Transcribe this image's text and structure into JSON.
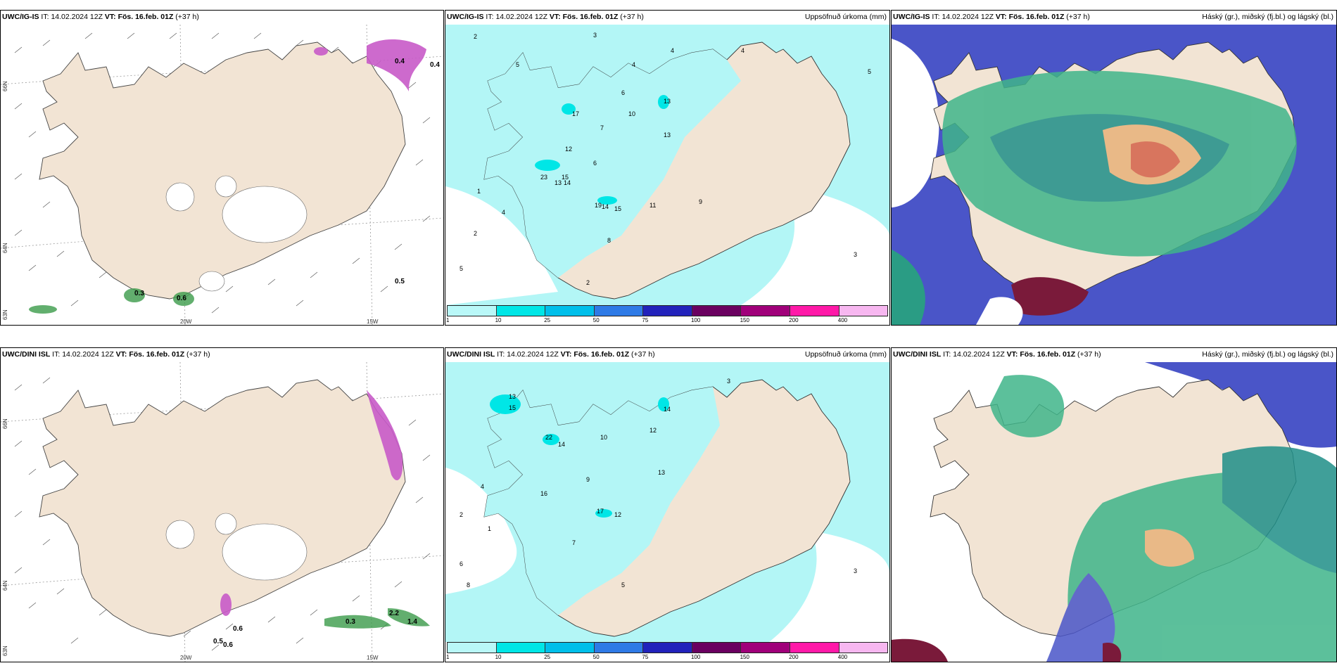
{
  "panels": [
    {
      "id": "r1c1",
      "model": "UWC/IG-IS",
      "it_label": "IT:",
      "it_value": "14.02.2024 12Z",
      "vt_label": "VT:",
      "vt_value": "Fös. 16.feb. 01Z",
      "lead": "(+37 h)",
      "right_title": "",
      "grid_labels": {
        "lat_66": "66N",
        "lat_64": "64N",
        "lat_63": "63N",
        "lon_20": "20W",
        "lon_15": "15W"
      },
      "values": [
        "0.5",
        "0.3",
        "0.6",
        "0.4",
        "0.4"
      ]
    },
    {
      "id": "r1c2",
      "model": "UWC/IG-IS",
      "it_label": "IT:",
      "it_value": "14.02.2024 12Z",
      "vt_label": "VT:",
      "vt_value": "Fös. 16.feb. 01Z",
      "lead": "(+37 h)",
      "right_title": "Uppsöfnuð úrkoma (mm)",
      "legend_ticks": [
        "1",
        "10",
        "25",
        "50",
        "75",
        "100",
        "150",
        "200",
        "400"
      ],
      "values": [
        "3",
        "4",
        "4",
        "5",
        "6",
        "2",
        "4",
        "10",
        "13",
        "17",
        "15",
        "12",
        "13",
        "23",
        "13",
        "14",
        "19",
        "15",
        "14",
        "11",
        "9",
        "7",
        "6",
        "8",
        "5",
        "2",
        "1",
        "4",
        "2",
        "5",
        "3"
      ]
    },
    {
      "id": "r1c3",
      "model": "UWC/IG-IS",
      "it_label": "IT:",
      "it_value": "14.02.2024 12Z",
      "vt_label": "VT:",
      "vt_value": "Fös. 16.feb. 01Z",
      "lead": "(+37 h)",
      "right_title": "Háský (gr.), miðský (fj.bl.) og lágský (bl.)"
    },
    {
      "id": "r2c1",
      "model": "UWC/DINI ISL",
      "it_label": "IT:",
      "it_value": "14.02.2024 12Z",
      "vt_label": "VT:",
      "vt_value": "Fös. 16.feb. 01Z",
      "lead": "(+37 h)",
      "right_title": "",
      "grid_labels": {
        "lat_66": "66N",
        "lat_64": "64N",
        "lat_63": "63N",
        "lon_20": "20W",
        "lon_15": "15W"
      },
      "values": [
        "0.6",
        "0.5",
        "0.6",
        "0.3",
        "1.4",
        "2.2"
      ]
    },
    {
      "id": "r2c2",
      "model": "UWC/DINI ISL",
      "it_label": "IT:",
      "it_value": "14.02.2024 12Z",
      "vt_label": "VT:",
      "vt_value": "Fös. 16.feb. 01Z",
      "lead": "(+37 h)",
      "right_title": "Uppsöfnuð úrkoma (mm)",
      "legend_ticks": [
        "1",
        "10",
        "25",
        "50",
        "75",
        "100",
        "150",
        "200",
        "400"
      ],
      "values": [
        "3",
        "13",
        "15",
        "22",
        "14",
        "16",
        "17",
        "12",
        "10",
        "13",
        "9",
        "12",
        "14",
        "7",
        "5",
        "4",
        "2",
        "1",
        "6",
        "8",
        "3"
      ]
    },
    {
      "id": "r2c3",
      "model": "UWC/DINI ISL",
      "it_label": "IT:",
      "it_value": "14.02.2024 12Z",
      "vt_label": "VT:",
      "vt_value": "Fös. 16.feb. 01Z",
      "lead": "(+37 h)",
      "right_title": "Háský (gr.), miðský (fj.bl.) og lágský (bl.)"
    }
  ],
  "colors": {
    "land": "#f2e4d4",
    "precip_light": "#b3f6f6",
    "legend": [
      "#b9f8f8",
      "#00e6e6",
      "#00bfea",
      "#2e7ae6",
      "#2222bb",
      "#6a0060",
      "#a0007a",
      "#ff19a8",
      "#f7b7f0"
    ],
    "snow_purple": "#d060d0",
    "high_cloud_green": "#3fb58a",
    "mid_cloud": "#4a55c8",
    "low_cloud": "#1f8f88"
  }
}
